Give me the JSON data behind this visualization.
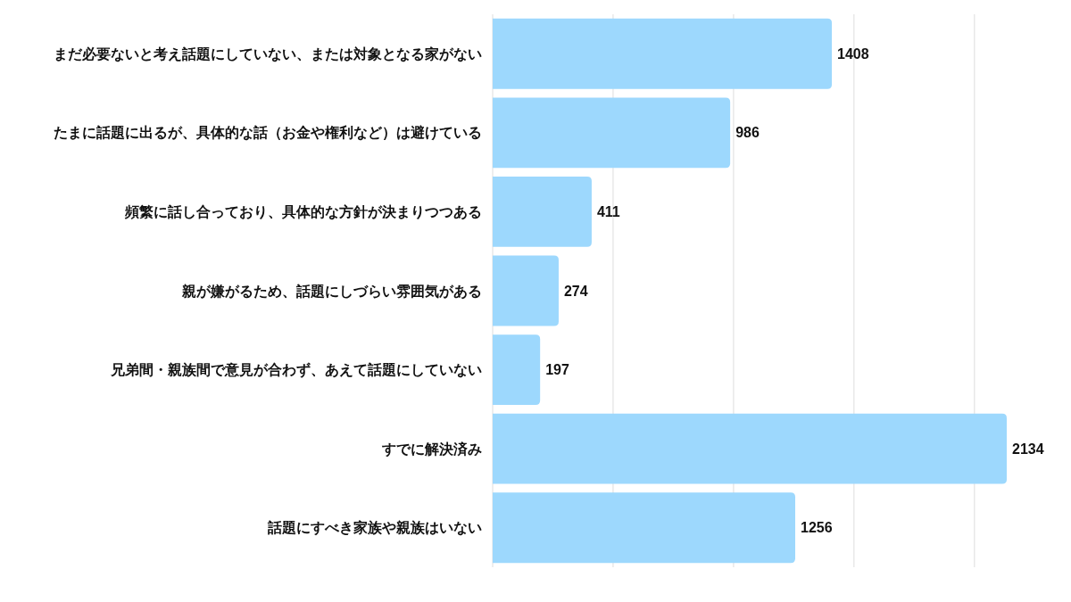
{
  "chart_data": {
    "type": "bar",
    "orientation": "horizontal",
    "categories": [
      "まだ必要ないと考え話題にしていない、または対象となる家がない",
      "たまに話題に出るが、具体的な話（お金や権利など）は避けている",
      "頻繁に話し合っており、具体的な方針が決まりつつある",
      "親が嫌がるため、話題にしづらい雰囲気がある",
      "兄弟間・親族間で意見が合わず、あえて話題にしていない",
      "すでに解決済み",
      "話題にすべき家族や親族はいない"
    ],
    "values": [
      1408,
      986,
      411,
      274,
      197,
      2134,
      1256
    ],
    "color": "#9dd8fd",
    "xticks": [
      {
        "value": 500,
        "label": null
      },
      {
        "value": 1000,
        "label": null
      },
      {
        "value": 1500,
        "label": null
      },
      {
        "value": 2000,
        "label": null
      }
    ],
    "grid": "x",
    "tick_labels": "y",
    "data_labels": true
  }
}
